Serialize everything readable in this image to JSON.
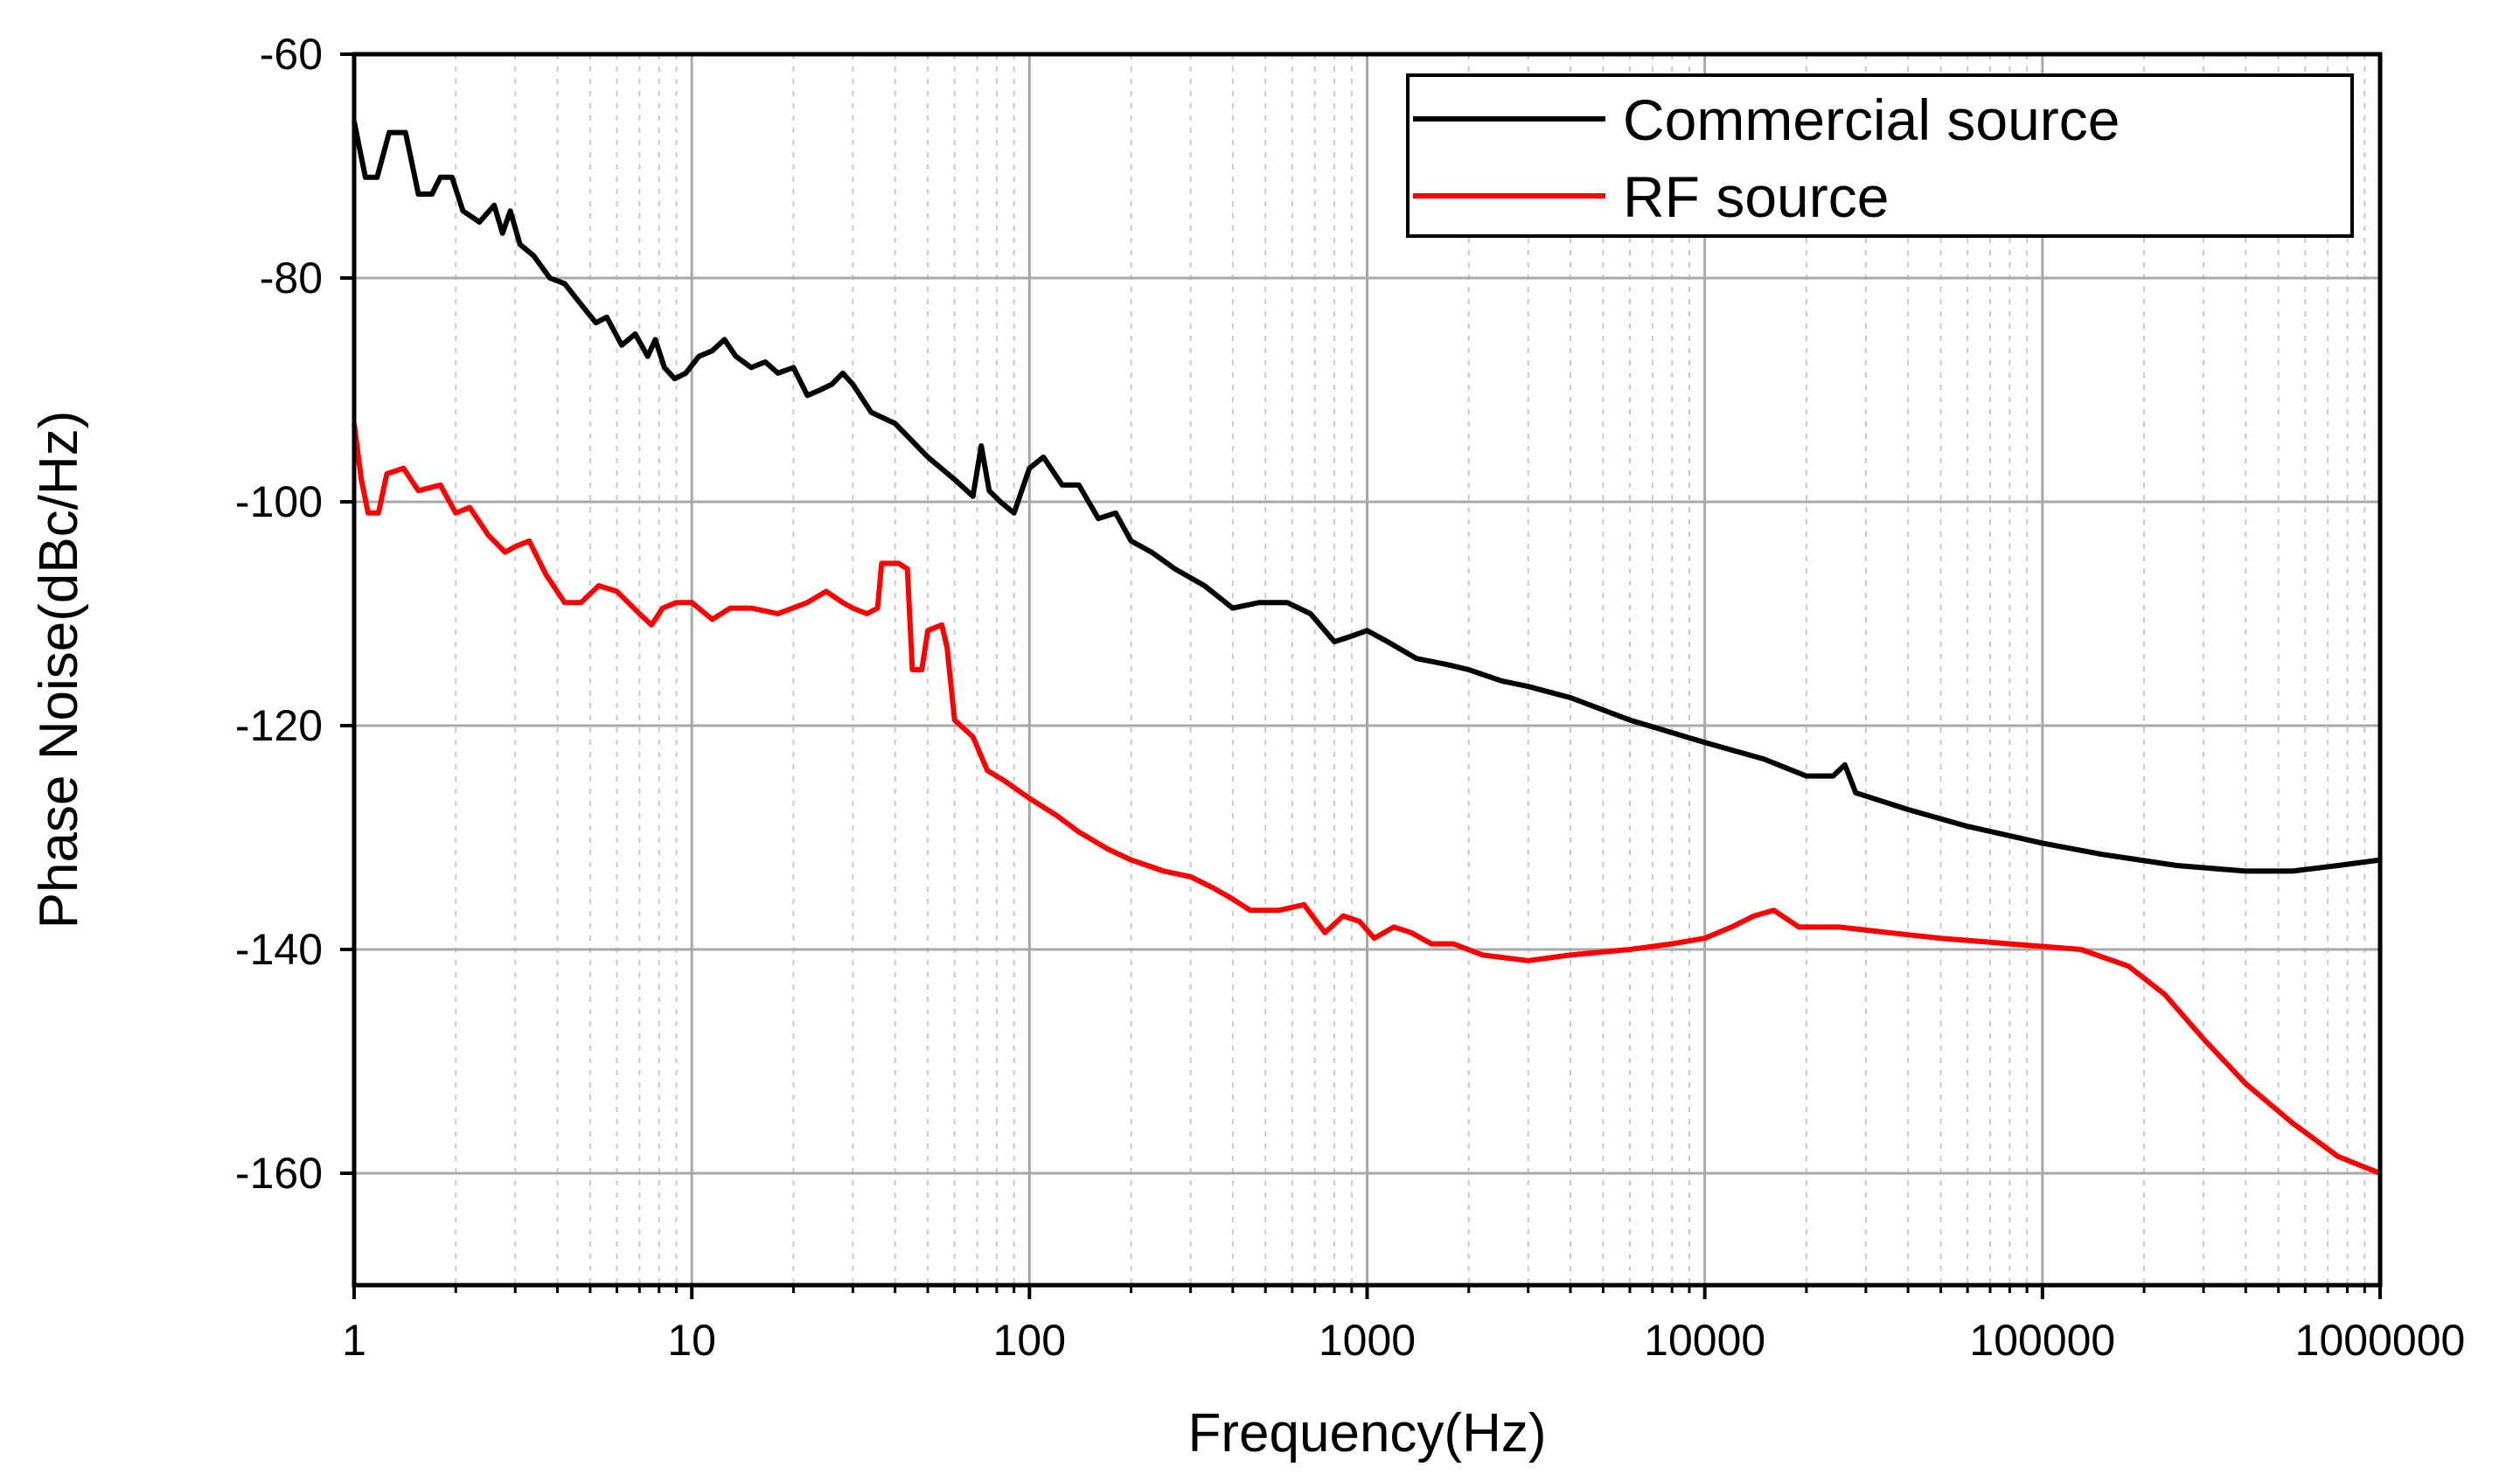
{
  "chart_data": {
    "type": "line",
    "title": "",
    "xlabel": "Frequency(Hz)",
    "ylabel": "Phase Noise(dBc/Hz)",
    "xscale": "log",
    "xlim": [
      1,
      1000000
    ],
    "ylim": [
      -170,
      -60
    ],
    "grid": true,
    "legend_position": "top-right",
    "x_ticks": [
      1,
      10,
      100,
      1000,
      10000,
      100000,
      1000000
    ],
    "x_tick_labels": [
      "1",
      "10",
      "100",
      "1000",
      "10000",
      "100000",
      "1000000"
    ],
    "y_ticks": [
      -60,
      -80,
      -100,
      -120,
      -140,
      -160
    ],
    "y_tick_labels": [
      "-60",
      "-80",
      "-100",
      "-120",
      "-140",
      "-160"
    ],
    "series": [
      {
        "name": "Commercial source",
        "color": "#000000",
        "points": [
          [
            1,
            -66
          ],
          [
            1.08,
            -71
          ],
          [
            1.17,
            -71
          ],
          [
            1.27,
            -67
          ],
          [
            1.42,
            -67
          ],
          [
            1.55,
            -72.5
          ],
          [
            1.7,
            -72.5
          ],
          [
            1.8,
            -71
          ],
          [
            1.95,
            -71
          ],
          [
            2.1,
            -74
          ],
          [
            2.35,
            -75
          ],
          [
            2.6,
            -73.5
          ],
          [
            2.75,
            -76
          ],
          [
            2.9,
            -74
          ],
          [
            3.1,
            -77
          ],
          [
            3.4,
            -78
          ],
          [
            3.8,
            -80
          ],
          [
            4.2,
            -80.5
          ],
          [
            4.6,
            -82
          ],
          [
            5.2,
            -84
          ],
          [
            5.6,
            -83.5
          ],
          [
            6.2,
            -86
          ],
          [
            6.8,
            -85
          ],
          [
            7.4,
            -87
          ],
          [
            7.8,
            -85.5
          ],
          [
            8.3,
            -88
          ],
          [
            8.9,
            -89
          ],
          [
            9.6,
            -88.5
          ],
          [
            10.5,
            -87
          ],
          [
            11.5,
            -86.5
          ],
          [
            12.5,
            -85.5
          ],
          [
            13.5,
            -87
          ],
          [
            15,
            -88
          ],
          [
            16.5,
            -87.5
          ],
          [
            18,
            -88.5
          ],
          [
            20,
            -88
          ],
          [
            22,
            -90.5
          ],
          [
            24,
            -90
          ],
          [
            26,
            -89.5
          ],
          [
            28,
            -88.5
          ],
          [
            30,
            -89.5
          ],
          [
            34,
            -92
          ],
          [
            40,
            -93
          ],
          [
            50,
            -96
          ],
          [
            60,
            -98
          ],
          [
            68,
            -99.5
          ],
          [
            72,
            -95
          ],
          [
            76,
            -99
          ],
          [
            82,
            -100
          ],
          [
            90,
            -101
          ],
          [
            100,
            -97
          ],
          [
            110,
            -96
          ],
          [
            125,
            -98.5
          ],
          [
            140,
            -98.5
          ],
          [
            160,
            -101.5
          ],
          [
            180,
            -101
          ],
          [
            200,
            -103.5
          ],
          [
            230,
            -104.5
          ],
          [
            270,
            -106
          ],
          [
            330,
            -107.5
          ],
          [
            400,
            -109.5
          ],
          [
            480,
            -109
          ],
          [
            580,
            -109
          ],
          [
            680,
            -110
          ],
          [
            800,
            -112.5
          ],
          [
            900,
            -112
          ],
          [
            1000,
            -111.5
          ],
          [
            1150,
            -112.5
          ],
          [
            1400,
            -114
          ],
          [
            1700,
            -114.5
          ],
          [
            2000,
            -115
          ],
          [
            2500,
            -116
          ],
          [
            3000,
            -116.5
          ],
          [
            4000,
            -117.5
          ],
          [
            6000,
            -119.5
          ],
          [
            10000,
            -121.5
          ],
          [
            15000,
            -123
          ],
          [
            20000,
            -124.5
          ],
          [
            24000,
            -124.5
          ],
          [
            26000,
            -123.5
          ],
          [
            28000,
            -126
          ],
          [
            40000,
            -127.5
          ],
          [
            60000,
            -129
          ],
          [
            100000,
            -130.5
          ],
          [
            150000,
            -131.5
          ],
          [
            250000,
            -132.5
          ],
          [
            400000,
            -133
          ],
          [
            550000,
            -133
          ],
          [
            750000,
            -132.5
          ],
          [
            1000000,
            -132
          ]
        ]
      },
      {
        "name": "RF source",
        "color": "#ff0000",
        "points": [
          [
            1,
            -93
          ],
          [
            1.05,
            -98
          ],
          [
            1.1,
            -101
          ],
          [
            1.18,
            -101
          ],
          [
            1.25,
            -97.5
          ],
          [
            1.4,
            -97
          ],
          [
            1.55,
            -99
          ],
          [
            1.8,
            -98.5
          ],
          [
            2.0,
            -101
          ],
          [
            2.2,
            -100.5
          ],
          [
            2.5,
            -103
          ],
          [
            2.8,
            -104.5
          ],
          [
            3.0,
            -104
          ],
          [
            3.3,
            -103.5
          ],
          [
            3.7,
            -106.5
          ],
          [
            4.2,
            -109
          ],
          [
            4.7,
            -109
          ],
          [
            5.3,
            -107.5
          ],
          [
            6.0,
            -108
          ],
          [
            7.0,
            -110
          ],
          [
            7.6,
            -111
          ],
          [
            8.2,
            -109.5
          ],
          [
            9.0,
            -109
          ],
          [
            10,
            -109
          ],
          [
            11.5,
            -110.5
          ],
          [
            13,
            -109.5
          ],
          [
            15,
            -109.5
          ],
          [
            18,
            -110
          ],
          [
            22,
            -109
          ],
          [
            25,
            -108
          ],
          [
            28,
            -109
          ],
          [
            30,
            -109.5
          ],
          [
            33,
            -110
          ],
          [
            35.5,
            -109.5
          ],
          [
            36.5,
            -105.5
          ],
          [
            41,
            -105.5
          ],
          [
            43.5,
            -106
          ],
          [
            45,
            -115
          ],
          [
            48,
            -115
          ],
          [
            50,
            -111.5
          ],
          [
            55,
            -111
          ],
          [
            57,
            -113
          ],
          [
            60,
            -119.5
          ],
          [
            68,
            -121
          ],
          [
            75,
            -124
          ],
          [
            85,
            -125
          ],
          [
            100,
            -126.5
          ],
          [
            120,
            -128
          ],
          [
            140,
            -129.5
          ],
          [
            170,
            -131
          ],
          [
            200,
            -132
          ],
          [
            250,
            -133
          ],
          [
            300,
            -133.5
          ],
          [
            350,
            -134.5
          ],
          [
            400,
            -135.5
          ],
          [
            450,
            -136.5
          ],
          [
            550,
            -136.5
          ],
          [
            650,
            -136
          ],
          [
            750,
            -138.5
          ],
          [
            850,
            -137
          ],
          [
            950,
            -137.5
          ],
          [
            1050,
            -139
          ],
          [
            1200,
            -138
          ],
          [
            1350,
            -138.5
          ],
          [
            1550,
            -139.5
          ],
          [
            1800,
            -139.5
          ],
          [
            2200,
            -140.5
          ],
          [
            3000,
            -141
          ],
          [
            4000,
            -140.5
          ],
          [
            6000,
            -140
          ],
          [
            8000,
            -139.5
          ],
          [
            10000,
            -139
          ],
          [
            12000,
            -138
          ],
          [
            14000,
            -137
          ],
          [
            16000,
            -136.5
          ],
          [
            19000,
            -138
          ],
          [
            25000,
            -138
          ],
          [
            35000,
            -138.5
          ],
          [
            50000,
            -139
          ],
          [
            80000,
            -139.5
          ],
          [
            130000,
            -140
          ],
          [
            180000,
            -141.5
          ],
          [
            230000,
            -144
          ],
          [
            300000,
            -148
          ],
          [
            400000,
            -152
          ],
          [
            550000,
            -155.5
          ],
          [
            750000,
            -158.5
          ],
          [
            1000000,
            -160
          ]
        ]
      }
    ]
  }
}
